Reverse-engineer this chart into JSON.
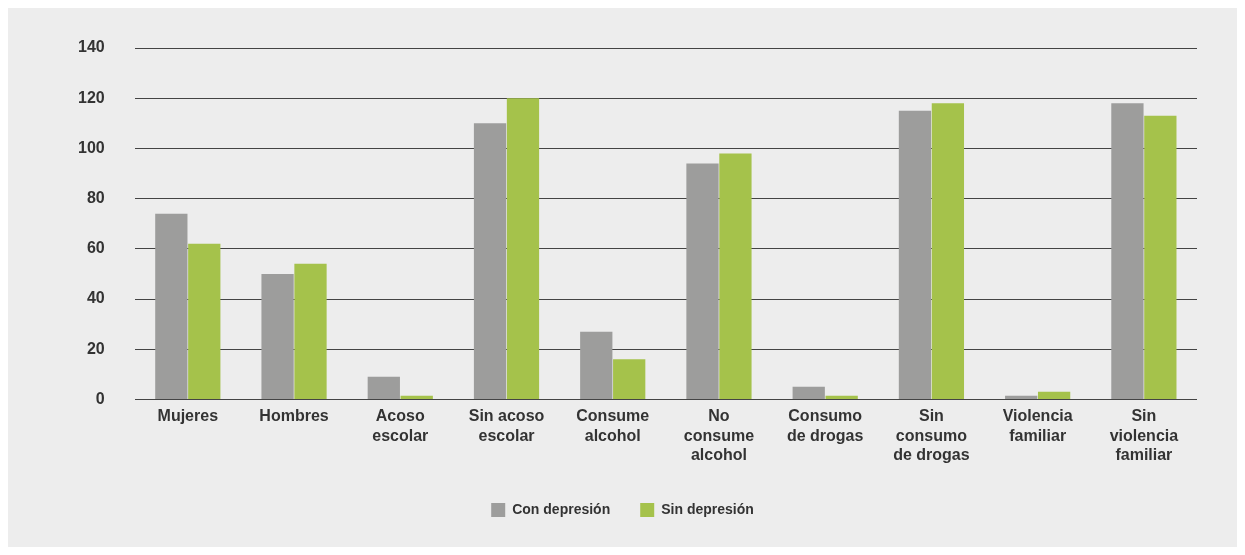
{
  "chart_data": {
    "type": "bar",
    "categories": [
      "Mujeres",
      "Hombres",
      "Acoso escolar",
      "Sin acoso escolar",
      "Consume alcohol",
      "No consume alcohol",
      "Consumo de drogas",
      "Sin consumo de drogas",
      "Violencia familiar",
      "Sin violencia familiar"
    ],
    "series": [
      {
        "name": "Con depresión",
        "color": "#9d9d9c",
        "values": [
          74,
          50,
          9,
          110,
          27,
          94,
          5,
          115,
          1.5,
          118
        ]
      },
      {
        "name": "Sin depresión",
        "color": "#a5c24b",
        "values": [
          62,
          54,
          1.5,
          120,
          16,
          98,
          1.5,
          118,
          3,
          113
        ]
      }
    ],
    "ylim": [
      0,
      140
    ],
    "yticks": [
      0,
      20,
      40,
      60,
      80,
      100,
      120,
      140
    ],
    "grid": "y",
    "legend": "bottom"
  }
}
